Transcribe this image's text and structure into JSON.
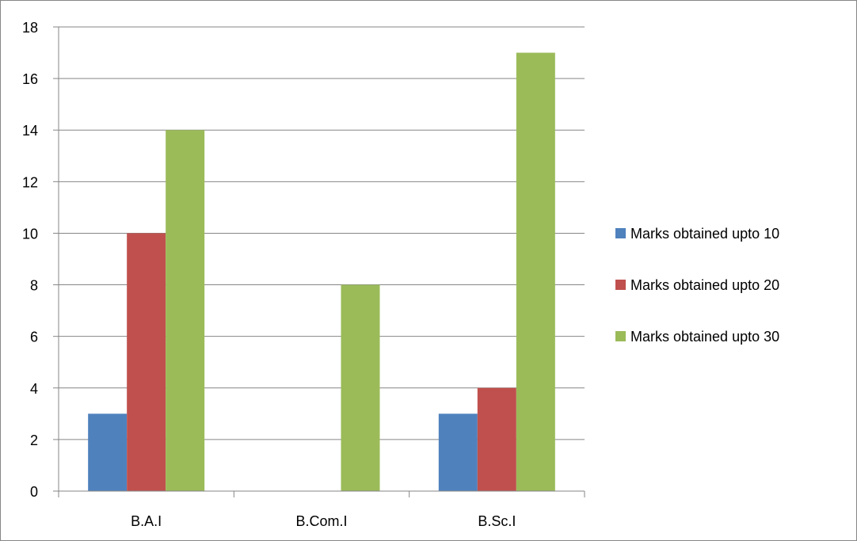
{
  "chart_data": {
    "type": "bar",
    "title": "",
    "xlabel": "",
    "ylabel": "",
    "categories": [
      "B.A.I",
      "B.Com.I",
      "B.Sc.I"
    ],
    "series": [
      {
        "name": "Marks obtained upto 10",
        "values": [
          3,
          0,
          3
        ],
        "color": "#4f81bd"
      },
      {
        "name": "Marks obtained upto 20",
        "values": [
          10,
          0,
          4
        ],
        "color": "#c0504d"
      },
      {
        "name": "Marks obtained upto 30",
        "values": [
          14,
          8,
          17
        ],
        "color": "#9bbb59"
      }
    ],
    "ylim": [
      0,
      18
    ],
    "yticks": [
      0,
      2,
      4,
      6,
      8,
      10,
      12,
      14,
      16,
      18
    ],
    "grid": true,
    "legend_position": "right"
  }
}
